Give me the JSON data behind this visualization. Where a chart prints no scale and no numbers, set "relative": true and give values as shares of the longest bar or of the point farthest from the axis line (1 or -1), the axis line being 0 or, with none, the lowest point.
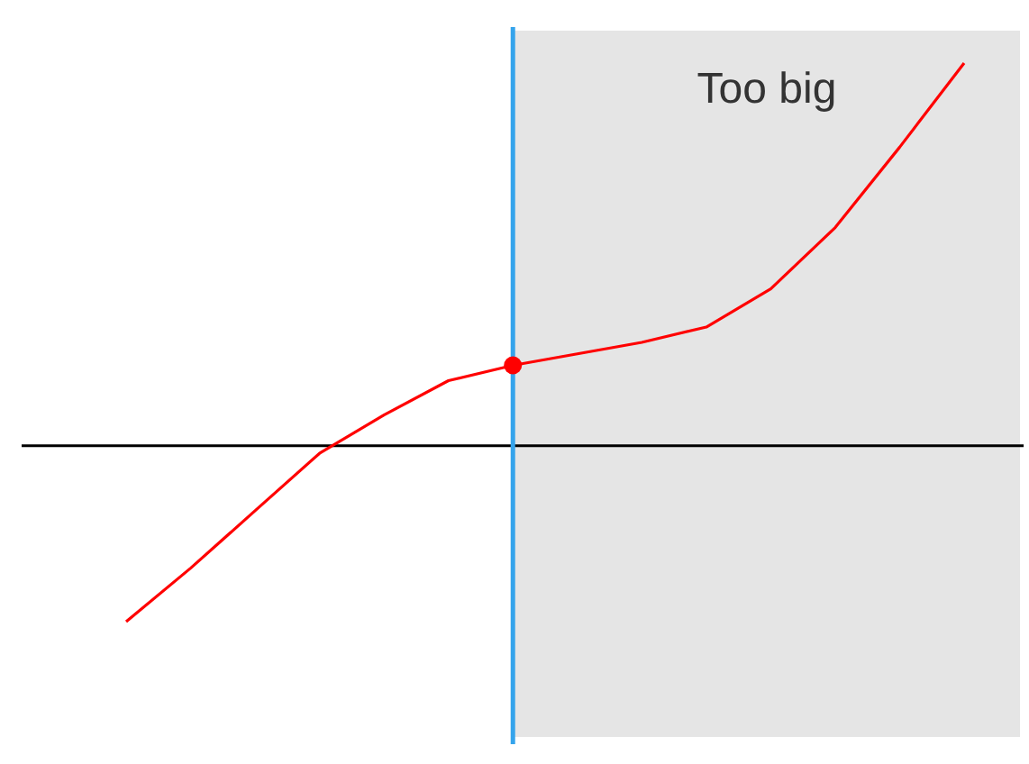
{
  "chart_data": {
    "type": "line",
    "relative": true,
    "categories": [
      null,
      null,
      null,
      null,
      null,
      null,
      null,
      null,
      null,
      null,
      null,
      null,
      null,
      null
    ],
    "series": [
      {
        "color": "#ff0000",
        "values": [
          -0.46,
          -0.32,
          -0.17,
          -0.02,
          0.08,
          0.17,
          0.21,
          0.24,
          0.27,
          0.31,
          0.41,
          0.57,
          0.78,
          1
        ]
      }
    ],
    "annotations": [
      "Too big"
    ]
  }
}
